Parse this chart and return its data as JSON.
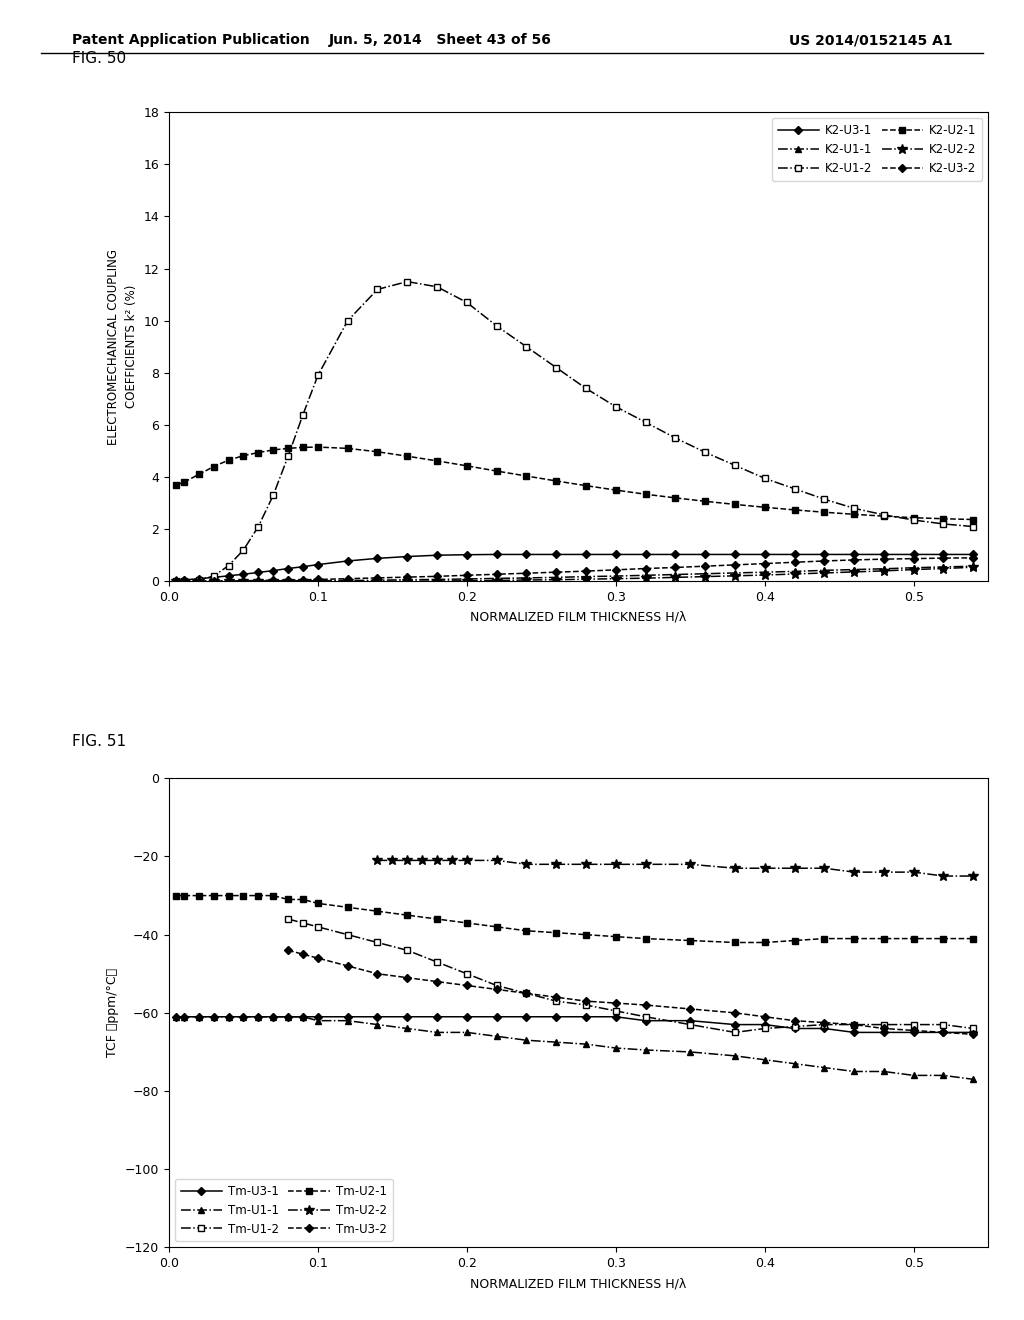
{
  "header": {
    "left": "Patent Application Publication",
    "center": "Jun. 5, 2014   Sheet 43 of 56",
    "right": "US 2014/0152145 A1"
  },
  "fig50": {
    "label": "FIG. 50",
    "xlabel": "NORMALIZED FILM THICKNESS H/λ",
    "ylabel": "ELECTROMECHANICAL COUPLING\nCOEFFICIENTS k² (%)",
    "xlim": [
      0.0,
      0.55
    ],
    "ylim": [
      0,
      18
    ],
    "yticks": [
      0,
      2,
      4,
      6,
      8,
      10,
      12,
      14,
      16,
      18
    ],
    "xticks": [
      0.0,
      0.1,
      0.2,
      0.3,
      0.4,
      0.5
    ],
    "series": {
      "K2-U3-1": {
        "x": [
          0.005,
          0.01,
          0.02,
          0.03,
          0.04,
          0.05,
          0.06,
          0.07,
          0.08,
          0.09,
          0.1,
          0.12,
          0.14,
          0.16,
          0.18,
          0.2,
          0.22,
          0.24,
          0.26,
          0.28,
          0.3,
          0.32,
          0.34,
          0.36,
          0.38,
          0.4,
          0.42,
          0.44,
          0.46,
          0.48,
          0.5,
          0.52,
          0.54
        ],
        "y": [
          0.03,
          0.05,
          0.1,
          0.15,
          0.21,
          0.27,
          0.34,
          0.41,
          0.49,
          0.56,
          0.64,
          0.78,
          0.88,
          0.95,
          1.0,
          1.02,
          1.03,
          1.03,
          1.03,
          1.03,
          1.03,
          1.03,
          1.03,
          1.03,
          1.03,
          1.03,
          1.03,
          1.03,
          1.03,
          1.03,
          1.03,
          1.03,
          1.03
        ],
        "linestyle": "-",
        "marker": "D",
        "markersize": 4,
        "color": "#000000",
        "markerfacecolor": "#000000"
      },
      "K2-U2-1": {
        "x": [
          0.005,
          0.01,
          0.02,
          0.03,
          0.04,
          0.05,
          0.06,
          0.07,
          0.08,
          0.09,
          0.1,
          0.12,
          0.14,
          0.16,
          0.18,
          0.2,
          0.22,
          0.24,
          0.26,
          0.28,
          0.3,
          0.32,
          0.34,
          0.36,
          0.38,
          0.4,
          0.42,
          0.44,
          0.46,
          0.48,
          0.5,
          0.52,
          0.54
        ],
        "y": [
          3.7,
          3.8,
          4.1,
          4.4,
          4.65,
          4.82,
          4.94,
          5.04,
          5.1,
          5.14,
          5.15,
          5.1,
          4.97,
          4.8,
          4.62,
          4.43,
          4.23,
          4.04,
          3.85,
          3.67,
          3.5,
          3.34,
          3.2,
          3.07,
          2.95,
          2.84,
          2.74,
          2.65,
          2.57,
          2.5,
          2.44,
          2.4,
          2.37
        ],
        "linestyle": "--",
        "marker": "s",
        "markersize": 5,
        "color": "#000000",
        "markerfacecolor": "#000000"
      },
      "K2-U1-1": {
        "x": [
          0.005,
          0.01,
          0.02,
          0.03,
          0.04,
          0.05,
          0.06,
          0.07,
          0.08,
          0.09,
          0.1,
          0.12,
          0.14,
          0.16,
          0.18,
          0.2,
          0.22,
          0.24,
          0.26,
          0.28,
          0.3,
          0.32,
          0.34,
          0.36,
          0.38,
          0.4,
          0.42,
          0.44,
          0.46,
          0.48,
          0.5,
          0.52,
          0.54
        ],
        "y": [
          0.0,
          0.0,
          0.0,
          0.0,
          0.01,
          0.01,
          0.01,
          0.01,
          0.02,
          0.02,
          0.02,
          0.03,
          0.04,
          0.06,
          0.07,
          0.09,
          0.11,
          0.13,
          0.15,
          0.18,
          0.2,
          0.23,
          0.26,
          0.29,
          0.32,
          0.35,
          0.38,
          0.42,
          0.45,
          0.48,
          0.52,
          0.55,
          0.58
        ],
        "linestyle": "-.",
        "marker": "^",
        "markersize": 4,
        "color": "#000000",
        "markerfacecolor": "#000000"
      },
      "K2-U2-2": {
        "x": [
          0.005,
          0.01,
          0.02,
          0.03,
          0.04,
          0.05,
          0.06,
          0.07,
          0.08,
          0.09,
          0.1,
          0.12,
          0.14,
          0.16,
          0.18,
          0.2,
          0.22,
          0.24,
          0.26,
          0.28,
          0.3,
          0.32,
          0.34,
          0.36,
          0.38,
          0.4,
          0.42,
          0.44,
          0.46,
          0.48,
          0.5,
          0.52,
          0.54
        ],
        "y": [
          0.0,
          0.0,
          0.0,
          0.0,
          0.0,
          0.0,
          0.0,
          0.0,
          0.0,
          0.0,
          0.0,
          0.0,
          0.0,
          0.0,
          0.01,
          0.02,
          0.03,
          0.05,
          0.06,
          0.08,
          0.1,
          0.12,
          0.15,
          0.18,
          0.21,
          0.24,
          0.28,
          0.32,
          0.36,
          0.4,
          0.45,
          0.49,
          0.54
        ],
        "linestyle": "-.",
        "marker": "*",
        "markersize": 7,
        "color": "#000000",
        "markerfacecolor": "#000000"
      },
      "K2-U1-2": {
        "x": [
          0.005,
          0.01,
          0.02,
          0.03,
          0.04,
          0.05,
          0.06,
          0.07,
          0.08,
          0.09,
          0.1,
          0.12,
          0.14,
          0.16,
          0.18,
          0.2,
          0.22,
          0.24,
          0.26,
          0.28,
          0.3,
          0.32,
          0.34,
          0.36,
          0.38,
          0.4,
          0.42,
          0.44,
          0.46,
          0.48,
          0.5,
          0.52,
          0.54
        ],
        "y": [
          0.0,
          0.0,
          0.05,
          0.2,
          0.6,
          1.2,
          2.1,
          3.3,
          4.8,
          6.4,
          7.9,
          10.0,
          11.2,
          11.5,
          11.3,
          10.7,
          9.8,
          9.0,
          8.2,
          7.4,
          6.7,
          6.1,
          5.5,
          4.95,
          4.45,
          3.95,
          3.55,
          3.15,
          2.8,
          2.55,
          2.35,
          2.2,
          2.1
        ],
        "linestyle": "-.",
        "marker": "s",
        "markersize": 5,
        "color": "#000000",
        "markerfacecolor": "#ffffff"
      },
      "K2-U3-2": {
        "x": [
          0.005,
          0.01,
          0.02,
          0.03,
          0.04,
          0.05,
          0.06,
          0.07,
          0.08,
          0.09,
          0.1,
          0.12,
          0.14,
          0.16,
          0.18,
          0.2,
          0.22,
          0.24,
          0.26,
          0.28,
          0.3,
          0.32,
          0.34,
          0.36,
          0.38,
          0.4,
          0.42,
          0.44,
          0.46,
          0.48,
          0.5,
          0.52,
          0.54
        ],
        "y": [
          0.0,
          0.0,
          0.0,
          0.01,
          0.01,
          0.02,
          0.03,
          0.04,
          0.05,
          0.06,
          0.07,
          0.1,
          0.13,
          0.16,
          0.19,
          0.23,
          0.27,
          0.31,
          0.35,
          0.39,
          0.44,
          0.49,
          0.53,
          0.58,
          0.63,
          0.68,
          0.73,
          0.78,
          0.82,
          0.85,
          0.87,
          0.89,
          0.9
        ],
        "linestyle": "--",
        "marker": "D",
        "markersize": 4,
        "color": "#000000",
        "markerfacecolor": "#000000"
      }
    }
  },
  "fig51": {
    "label": "FIG. 51",
    "xlabel": "NORMALIZED FILM THICKNESS H/λ",
    "ylabel": "TCF （ppm/°C）",
    "xlim": [
      0.0,
      0.55
    ],
    "ylim": [
      -120,
      0
    ],
    "yticks": [
      0,
      -20,
      -40,
      -60,
      -80,
      -100,
      -120
    ],
    "xticks": [
      0.0,
      0.1,
      0.2,
      0.3,
      0.4,
      0.5
    ],
    "series": {
      "Tm-U3-1": {
        "x": [
          0.005,
          0.01,
          0.02,
          0.03,
          0.04,
          0.05,
          0.06,
          0.07,
          0.08,
          0.09,
          0.1,
          0.12,
          0.14,
          0.16,
          0.18,
          0.2,
          0.22,
          0.24,
          0.26,
          0.28,
          0.3,
          0.32,
          0.35,
          0.38,
          0.4,
          0.42,
          0.44,
          0.46,
          0.48,
          0.5,
          0.52,
          0.54
        ],
        "y": [
          -61,
          -61,
          -61,
          -61,
          -61,
          -61,
          -61,
          -61,
          -61,
          -61,
          -61,
          -61,
          -61,
          -61,
          -61,
          -61,
          -61,
          -61,
          -61,
          -61,
          -61,
          -62,
          -62,
          -63,
          -63,
          -64,
          -64,
          -65,
          -65,
          -65,
          -65,
          -65
        ],
        "linestyle": "-",
        "marker": "D",
        "markersize": 4,
        "color": "#000000",
        "markerfacecolor": "#000000"
      },
      "Tm-U2-1": {
        "x": [
          0.005,
          0.01,
          0.02,
          0.03,
          0.04,
          0.05,
          0.06,
          0.07,
          0.08,
          0.09,
          0.1,
          0.12,
          0.14,
          0.16,
          0.18,
          0.2,
          0.22,
          0.24,
          0.26,
          0.28,
          0.3,
          0.32,
          0.35,
          0.38,
          0.4,
          0.42,
          0.44,
          0.46,
          0.48,
          0.5,
          0.52,
          0.54
        ],
        "y": [
          -30,
          -30,
          -30,
          -30,
          -30,
          -30,
          -30,
          -30,
          -31,
          -31,
          -32,
          -33,
          -34,
          -35,
          -36,
          -37,
          -38,
          -39,
          -39.5,
          -40,
          -40.5,
          -41,
          -41.5,
          -42,
          -42,
          -41.5,
          -41,
          -41,
          -41,
          -41,
          -41,
          -41
        ],
        "linestyle": "--",
        "marker": "s",
        "markersize": 5,
        "color": "#000000",
        "markerfacecolor": "#000000"
      },
      "Tm-U1-1": {
        "x": [
          0.005,
          0.01,
          0.02,
          0.03,
          0.04,
          0.05,
          0.06,
          0.07,
          0.08,
          0.09,
          0.1,
          0.12,
          0.14,
          0.16,
          0.18,
          0.2,
          0.22,
          0.24,
          0.26,
          0.28,
          0.3,
          0.32,
          0.35,
          0.38,
          0.4,
          0.42,
          0.44,
          0.46,
          0.48,
          0.5,
          0.52,
          0.54
        ],
        "y": [
          -61,
          -61,
          -61,
          -61,
          -61,
          -61,
          -61,
          -61,
          -61,
          -61,
          -62,
          -62,
          -63,
          -64,
          -65,
          -65,
          -66,
          -67,
          -67.5,
          -68,
          -69,
          -69.5,
          -70,
          -71,
          -72,
          -73,
          -74,
          -75,
          -75,
          -76,
          -76,
          -77
        ],
        "linestyle": "-.",
        "marker": "^",
        "markersize": 4,
        "color": "#000000",
        "markerfacecolor": "#000000"
      },
      "Tm-U2-2": {
        "x": [
          0.14,
          0.15,
          0.16,
          0.17,
          0.18,
          0.19,
          0.2,
          0.22,
          0.24,
          0.26,
          0.28,
          0.3,
          0.32,
          0.35,
          0.38,
          0.4,
          0.42,
          0.44,
          0.46,
          0.48,
          0.5,
          0.52,
          0.54
        ],
        "y": [
          -21,
          -21,
          -21,
          -21,
          -21,
          -21,
          -21,
          -21,
          -22,
          -22,
          -22,
          -22,
          -22,
          -22,
          -23,
          -23,
          -23,
          -23,
          -24,
          -24,
          -24,
          -25,
          -25
        ],
        "linestyle": "-.",
        "marker": "*",
        "markersize": 7,
        "color": "#000000",
        "markerfacecolor": "#000000"
      },
      "Tm-U1-2": {
        "x": [
          0.08,
          0.09,
          0.1,
          0.12,
          0.14,
          0.16,
          0.18,
          0.2,
          0.22,
          0.24,
          0.26,
          0.28,
          0.3,
          0.32,
          0.35,
          0.38,
          0.4,
          0.42,
          0.44,
          0.46,
          0.48,
          0.5,
          0.52,
          0.54
        ],
        "y": [
          -36,
          -37,
          -38,
          -40,
          -42,
          -44,
          -47,
          -50,
          -53,
          -55,
          -57,
          -58,
          -59.5,
          -61,
          -63,
          -65,
          -64,
          -63.5,
          -63,
          -63,
          -63,
          -63,
          -63,
          -64
        ],
        "linestyle": "-.",
        "marker": "s",
        "markersize": 5,
        "color": "#000000",
        "markerfacecolor": "#ffffff"
      },
      "Tm-U3-2": {
        "x": [
          0.08,
          0.09,
          0.1,
          0.12,
          0.14,
          0.16,
          0.18,
          0.2,
          0.22,
          0.24,
          0.26,
          0.28,
          0.3,
          0.32,
          0.35,
          0.38,
          0.4,
          0.42,
          0.44,
          0.46,
          0.48,
          0.5,
          0.52,
          0.54
        ],
        "y": [
          -44,
          -45,
          -46,
          -48,
          -50,
          -51,
          -52,
          -53,
          -54,
          -55,
          -56,
          -57,
          -57.5,
          -58,
          -59,
          -60,
          -61,
          -62,
          -62.5,
          -63,
          -64,
          -64.5,
          -65,
          -65.5
        ],
        "linestyle": "--",
        "marker": "D",
        "markersize": 4,
        "color": "#000000",
        "markerfacecolor": "#000000"
      }
    }
  },
  "background_color": "#ffffff"
}
